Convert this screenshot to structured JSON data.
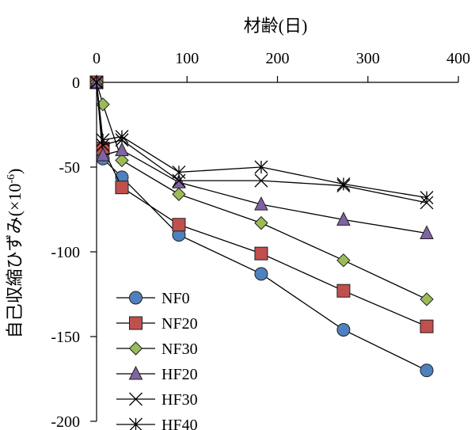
{
  "chart_data": {
    "type": "line",
    "title": "",
    "xlabel": "材齢(日)",
    "ylabel": "自己収縮ひずみ(×10",
    "ylabel_sup": "-6",
    "ylabel_close": ")",
    "xlim": [
      0,
      400
    ],
    "ylim": [
      -200,
      0
    ],
    "x_axis_position": "top",
    "x_ticks": [
      0,
      100,
      200,
      300,
      400
    ],
    "y_ticks": [
      0,
      -50,
      -100,
      -150,
      -200
    ],
    "x_tick_labels": [
      "0",
      "100",
      "200",
      "300",
      "400"
    ],
    "y_tick_labels": [
      "0",
      "-50",
      "-100",
      "-150",
      "-200"
    ],
    "grid": false,
    "legend_position": "bottom-left",
    "series": [
      {
        "name": "NF0",
        "marker": "circle",
        "color": "#4f81bd",
        "x": [
          0,
          7,
          28,
          91,
          182,
          273,
          365
        ],
        "y": [
          0,
          -45,
          -56,
          -90,
          -113,
          -146,
          -170
        ]
      },
      {
        "name": "NF20",
        "marker": "square",
        "color": "#c0504d",
        "x": [
          0,
          7,
          28,
          91,
          182,
          273,
          365
        ],
        "y": [
          0,
          -39,
          -62,
          -84,
          -101,
          -123,
          -144
        ]
      },
      {
        "name": "NF30",
        "marker": "diamond",
        "color": "#9bbb59",
        "x": [
          0,
          7,
          28,
          91,
          182,
          273,
          365
        ],
        "y": [
          0,
          -13,
          -46,
          -66,
          -83,
          -105,
          -128
        ]
      },
      {
        "name": "HF20",
        "marker": "triangle",
        "color": "#8064a2",
        "x": [
          0,
          7,
          28,
          91,
          182,
          273,
          365
        ],
        "y": [
          0,
          -43,
          -40,
          -59,
          -72,
          -81,
          -89
        ]
      },
      {
        "name": "HF30",
        "marker": "x",
        "color": "#000000",
        "x": [
          0,
          7,
          28,
          91,
          182,
          273,
          365
        ],
        "y": [
          0,
          -37,
          -34,
          -58,
          -58,
          -61,
          -71
        ]
      },
      {
        "name": "HF40",
        "marker": "asterisk",
        "color": "#000000",
        "x": [
          0,
          7,
          28,
          91,
          182,
          273,
          365
        ],
        "y": [
          0,
          -34,
          -32,
          -53,
          -50,
          -60,
          -68
        ]
      }
    ]
  }
}
